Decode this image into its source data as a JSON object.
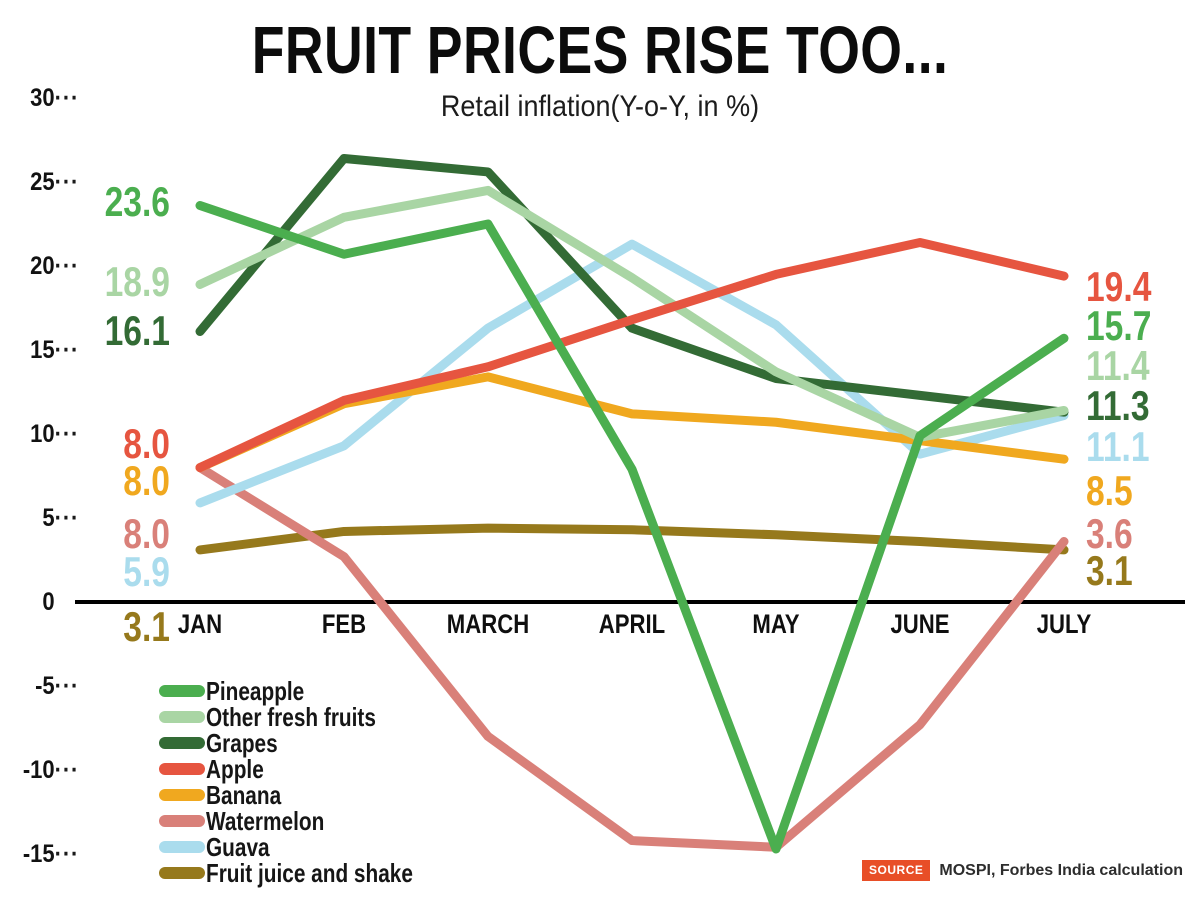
{
  "title": "FRUIT PRICES RISE TOO...",
  "subtitle": "Retail inflation(Y-o-Y, in %)",
  "source": {
    "badge": "SOURCE",
    "text": "MOSPI, Forbes India calculation",
    "badge_color": "#e84e27"
  },
  "chart_data": {
    "type": "line",
    "title": "FRUIT PRICES RISE TOO...",
    "subtitle": "Retail inflation(Y-o-Y, in %)",
    "categories": [
      "JAN",
      "FEB",
      "MARCH",
      "APRIL",
      "MAY",
      "JUNE",
      "JULY"
    ],
    "y_ticks": [
      30,
      25,
      20,
      15,
      10,
      5,
      0,
      -5,
      -10,
      -15
    ],
    "ylim": [
      -15,
      30
    ],
    "grid": "off",
    "legend_position": "bottom-left",
    "series": [
      {
        "name": "Pineapple",
        "color": "#4bae4f",
        "values": [
          23.6,
          20.7,
          22.5,
          7.9,
          -14.7,
          9.9,
          15.7
        ],
        "start_label": "23.6",
        "end_label": "15.7"
      },
      {
        "name": "Other fresh fruits",
        "color": "#a9d5a4",
        "values": [
          18.9,
          22.9,
          24.5,
          19.3,
          13.7,
          9.8,
          11.4
        ],
        "start_label": "18.9",
        "end_label": "11.4"
      },
      {
        "name": "Grapes",
        "color": "#336b35",
        "values": [
          16.1,
          26.4,
          25.6,
          16.3,
          13.3,
          12.3,
          11.3
        ],
        "start_label": "16.1",
        "end_label": "11.3"
      },
      {
        "name": "Apple",
        "color": "#e65540",
        "values": [
          8.0,
          12.0,
          14.0,
          16.8,
          19.5,
          21.4,
          19.4
        ],
        "start_label": "8.0",
        "end_label": "19.4"
      },
      {
        "name": "Banana",
        "color": "#f0a81f",
        "values": [
          8.0,
          11.8,
          13.4,
          11.2,
          10.7,
          9.6,
          8.5
        ],
        "start_label": "8.0",
        "end_label": "8.5"
      },
      {
        "name": "Watermelon",
        "color": "#d98079",
        "values": [
          8.0,
          2.7,
          -8.0,
          -14.2,
          -14.6,
          -7.3,
          3.6
        ],
        "start_label": "8.0",
        "end_label": "3.6"
      },
      {
        "name": "Guava",
        "color": "#aadced",
        "values": [
          5.9,
          9.3,
          16.3,
          21.3,
          16.5,
          8.8,
          11.1
        ],
        "start_label": "5.9",
        "end_label": "11.1"
      },
      {
        "name": "Fruit juice and shake",
        "color": "#96791c",
        "values": [
          3.1,
          4.2,
          4.4,
          4.3,
          4.0,
          3.6,
          3.1
        ],
        "start_label": "3.1",
        "end_label": "3.1"
      }
    ]
  }
}
